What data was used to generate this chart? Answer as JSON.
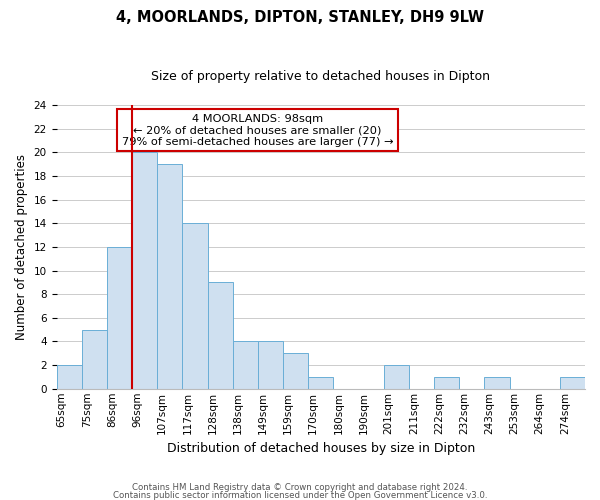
{
  "title": "4, MOORLANDS, DIPTON, STANLEY, DH9 9LW",
  "subtitle": "Size of property relative to detached houses in Dipton",
  "xlabel": "Distribution of detached houses by size in Dipton",
  "ylabel": "Number of detached properties",
  "bar_color": "#cfe0f0",
  "bar_edge_color": "#6aaed6",
  "bin_labels": [
    "65sqm",
    "75sqm",
    "86sqm",
    "96sqm",
    "107sqm",
    "117sqm",
    "128sqm",
    "138sqm",
    "149sqm",
    "159sqm",
    "170sqm",
    "180sqm",
    "190sqm",
    "201sqm",
    "211sqm",
    "222sqm",
    "232sqm",
    "243sqm",
    "253sqm",
    "264sqm",
    "274sqm"
  ],
  "n_bins": 21,
  "counts": [
    2,
    5,
    12,
    20,
    19,
    14,
    9,
    4,
    4,
    3,
    1,
    0,
    0,
    2,
    0,
    1,
    0,
    1,
    0,
    0,
    1
  ],
  "property_bin_index": 3,
  "vline_color": "#cc0000",
  "annotation_line1": "4 MOORLANDS: 98sqm",
  "annotation_line2": "← 20% of detached houses are smaller (20)",
  "annotation_line3": "79% of semi-detached houses are larger (77) →",
  "annotation_box_facecolor": "#ffffff",
  "annotation_box_edgecolor": "#cc0000",
  "ylim": [
    0,
    24
  ],
  "yticks": [
    0,
    2,
    4,
    6,
    8,
    10,
    12,
    14,
    16,
    18,
    20,
    22,
    24
  ],
  "footer_line1": "Contains HM Land Registry data © Crown copyright and database right 2024.",
  "footer_line2": "Contains public sector information licensed under the Open Government Licence v3.0.",
  "background_color": "#ffffff",
  "grid_color": "#cccccc",
  "title_fontsize": 10.5,
  "subtitle_fontsize": 9,
  "tick_fontsize": 7.5,
  "ylabel_fontsize": 8.5,
  "xlabel_fontsize": 9
}
